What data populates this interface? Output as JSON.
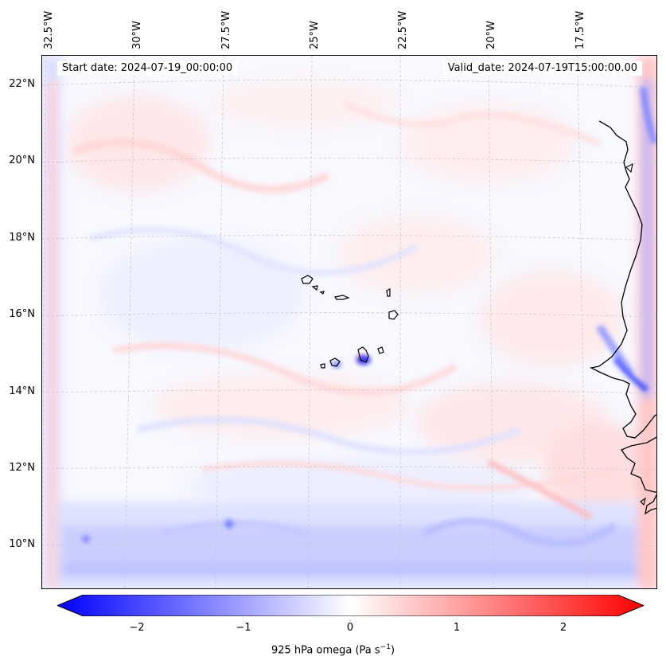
{
  "header": {
    "start_date": "Start date: 2024-07-19_00:00:00",
    "valid_date": "Valid_date: 2024-07-19T15:00:00.00"
  },
  "longitudes": [
    "32.5°W",
    "30°W",
    "27.5°W",
    "25°W",
    "22.5°W",
    "20°W",
    "17.5°W"
  ],
  "latitudes": [
    "22°N",
    "20°N",
    "18°N",
    "16°N",
    "14°N",
    "12°N",
    "10°N"
  ],
  "colorbar": {
    "ticks": [
      "−2",
      "−1",
      "0",
      "1",
      "2"
    ],
    "label_prefix": "925 hPa omega (Pa s",
    "label_sup": "−1",
    "label_suffix": ")",
    "range": [
      -2.5,
      2.5
    ],
    "colormap": "bwr",
    "color_min": "#0000ff",
    "color_mid": "#ffffff",
    "color_max": "#ff0000"
  },
  "map": {
    "coastline_color": "#000000",
    "gridline_color": "#c8c8c8",
    "background_color": "#f8f8ff"
  }
}
